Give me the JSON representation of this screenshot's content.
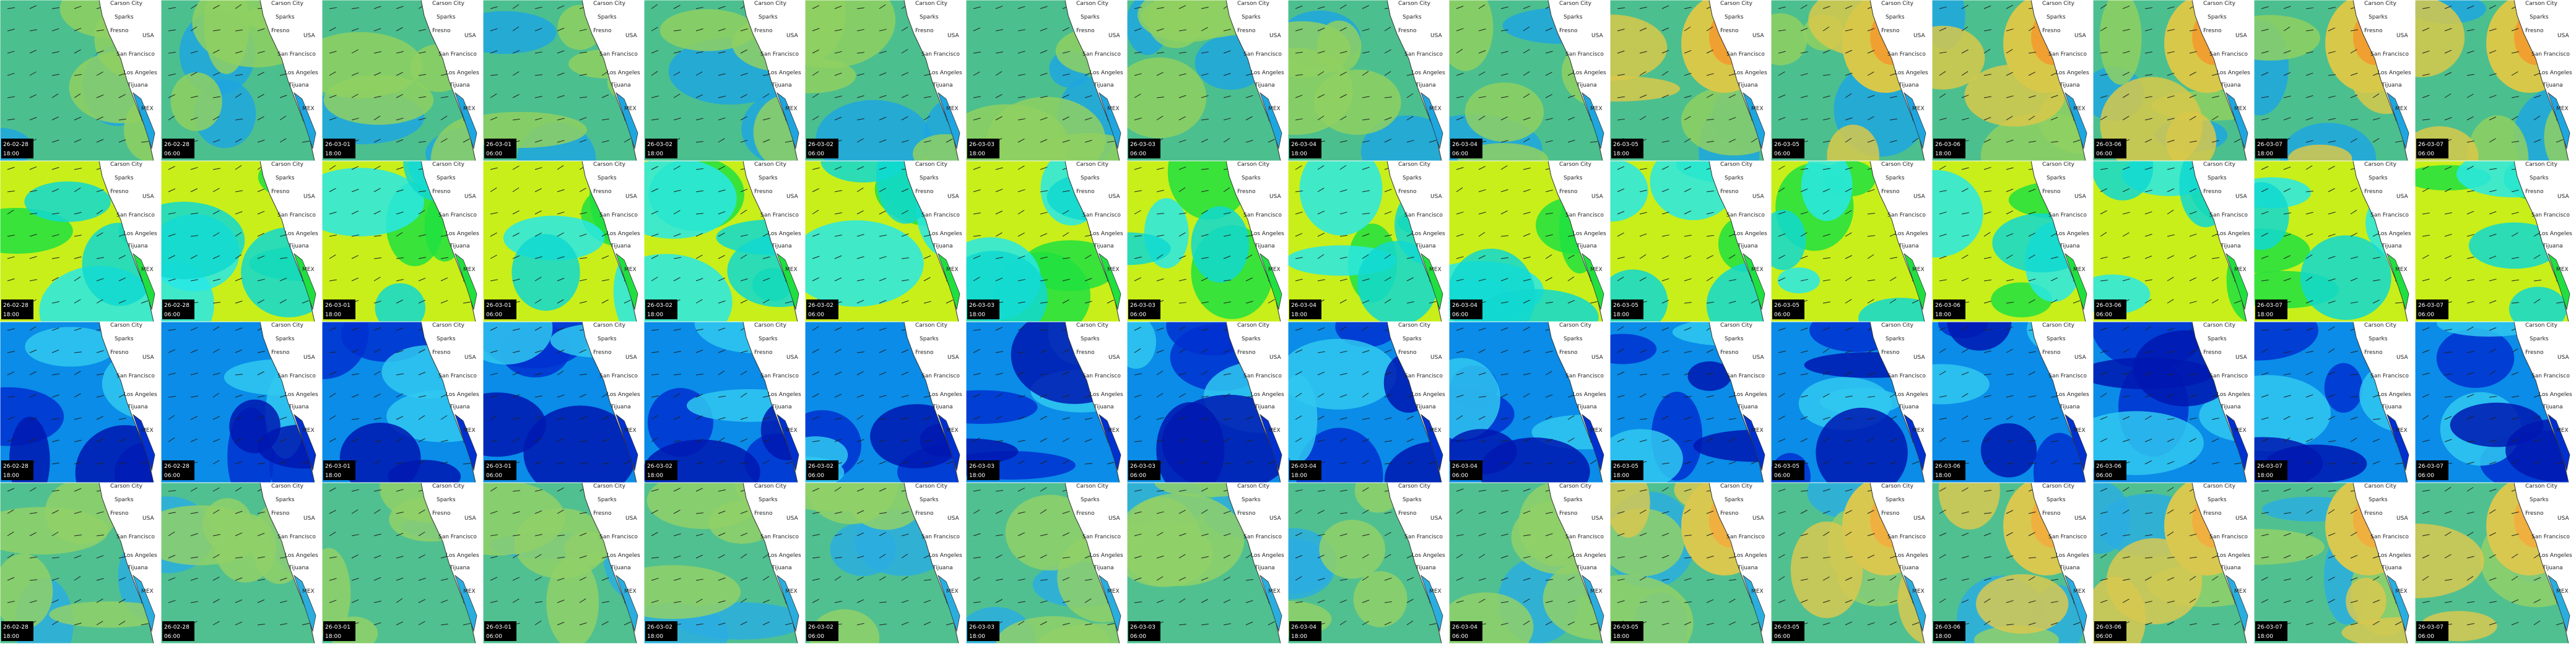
{
  "columns": [
    {
      "date": "26-02-28",
      "time": "18:00"
    },
    {
      "date": "26-02-28",
      "time": "06:00"
    },
    {
      "date": "26-03-01",
      "time": "18:00"
    },
    {
      "date": "26-03-01",
      "time": "06:00"
    },
    {
      "date": "26-03-02",
      "time": "18:00"
    },
    {
      "date": "26-03-02",
      "time": "06:00"
    },
    {
      "date": "26-03-03",
      "time": "18:00"
    },
    {
      "date": "26-03-03",
      "time": "06:00"
    },
    {
      "date": "26-03-04",
      "time": "18:00"
    },
    {
      "date": "26-03-04",
      "time": "06:00"
    },
    {
      "date": "26-03-05",
      "time": "18:00"
    },
    {
      "date": "26-03-05",
      "time": "06:00"
    },
    {
      "date": "26-03-06",
      "time": "18:00"
    },
    {
      "date": "26-03-06",
      "time": "06:00"
    },
    {
      "date": "26-03-07",
      "time": "18:00"
    },
    {
      "date": "26-03-07",
      "time": "06:00"
    }
  ],
  "map_labels": [
    "Carson City",
    "Sparks",
    "Fresno",
    "San Francisco",
    "Los Angeles",
    "Tijuana",
    "USA",
    "MEX"
  ]
}
